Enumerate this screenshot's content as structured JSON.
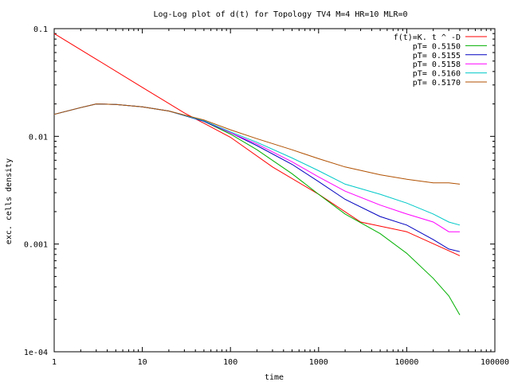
{
  "chart_data": {
    "type": "line",
    "title": "Log-Log plot of d(t) for Topology TV4 M=4 HR=10 MLR=0",
    "xlabel": "time",
    "ylabel": "exc. cells density",
    "x_scale": "log",
    "y_scale": "log",
    "xlim": [
      1,
      100000
    ],
    "ylim": [
      0.0001,
      0.1
    ],
    "x_ticks": [
      1,
      10,
      100,
      1000,
      10000,
      100000
    ],
    "x_tick_labels": [
      "1",
      "10",
      "100",
      "1000",
      "10000",
      "100000"
    ],
    "y_ticks": [
      0.0001,
      0.001,
      0.01,
      0.1
    ],
    "y_tick_labels": [
      "1e-04",
      "0.001",
      "0.01",
      "0.1"
    ],
    "grid": false,
    "legend_position": "top-right",
    "series": [
      {
        "name": "f(t)=K. t ^ -D",
        "color": "#ff0000",
        "points": [
          [
            1,
            0.09
          ],
          [
            3,
            0.052
          ],
          [
            10,
            0.0285
          ],
          [
            30,
            0.0165
          ],
          [
            100,
            0.0098
          ],
          [
            300,
            0.0052
          ],
          [
            1000,
            0.0029
          ],
          [
            3000,
            0.0016
          ],
          [
            10000,
            0.0013
          ],
          [
            40000,
            0.00078
          ]
        ]
      },
      {
        "name": "pT= 0.5150",
        "color": "#00b000",
        "points": [
          [
            1,
            0.016
          ],
          [
            2,
            0.0185
          ],
          [
            3,
            0.02
          ],
          [
            5,
            0.0198
          ],
          [
            10,
            0.0188
          ],
          [
            20,
            0.0172
          ],
          [
            50,
            0.0138
          ],
          [
            100,
            0.0105
          ],
          [
            200,
            0.0075
          ],
          [
            500,
            0.0045
          ],
          [
            1000,
            0.0029
          ],
          [
            2000,
            0.0019
          ],
          [
            5000,
            0.00125
          ],
          [
            10000,
            0.00082
          ],
          [
            20000,
            0.00048
          ],
          [
            30000,
            0.00033
          ],
          [
            40000,
            0.00022
          ]
        ]
      },
      {
        "name": "pT= 0.5155",
        "color": "#0000c0",
        "points": [
          [
            1,
            0.016
          ],
          [
            2,
            0.0185
          ],
          [
            3,
            0.02
          ],
          [
            5,
            0.0198
          ],
          [
            10,
            0.0188
          ],
          [
            20,
            0.0172
          ],
          [
            50,
            0.0138
          ],
          [
            100,
            0.0108
          ],
          [
            200,
            0.0082
          ],
          [
            500,
            0.0055
          ],
          [
            1000,
            0.0038
          ],
          [
            2000,
            0.0026
          ],
          [
            5000,
            0.0018
          ],
          [
            10000,
            0.0015
          ],
          [
            20000,
            0.0011
          ],
          [
            30000,
            0.0009
          ],
          [
            40000,
            0.00085
          ]
        ]
      },
      {
        "name": "pT= 0.5158",
        "color": "#ff00ff",
        "points": [
          [
            1,
            0.016
          ],
          [
            2,
            0.0185
          ],
          [
            3,
            0.02
          ],
          [
            5,
            0.0198
          ],
          [
            10,
            0.0188
          ],
          [
            20,
            0.0172
          ],
          [
            50,
            0.014
          ],
          [
            100,
            0.0108
          ],
          [
            200,
            0.0085
          ],
          [
            500,
            0.0058
          ],
          [
            1000,
            0.0042
          ],
          [
            2000,
            0.0031
          ],
          [
            5000,
            0.0023
          ],
          [
            10000,
            0.0019
          ],
          [
            20000,
            0.0016
          ],
          [
            30000,
            0.0013
          ],
          [
            40000,
            0.0013
          ]
        ]
      },
      {
        "name": "pT= 0.5160",
        "color": "#00c8c8",
        "points": [
          [
            1,
            0.016
          ],
          [
            2,
            0.0185
          ],
          [
            3,
            0.02
          ],
          [
            5,
            0.0198
          ],
          [
            10,
            0.0188
          ],
          [
            20,
            0.0172
          ],
          [
            50,
            0.014
          ],
          [
            100,
            0.011
          ],
          [
            200,
            0.0088
          ],
          [
            500,
            0.0063
          ],
          [
            1000,
            0.0048
          ],
          [
            2000,
            0.0036
          ],
          [
            5000,
            0.0029
          ],
          [
            10000,
            0.0024
          ],
          [
            20000,
            0.0019
          ],
          [
            30000,
            0.0016
          ],
          [
            40000,
            0.0015
          ]
        ]
      },
      {
        "name": "pT= 0.5170",
        "color": "#b05000",
        "points": [
          [
            1,
            0.016
          ],
          [
            2,
            0.0185
          ],
          [
            3,
            0.02
          ],
          [
            5,
            0.0198
          ],
          [
            10,
            0.0188
          ],
          [
            20,
            0.0172
          ],
          [
            50,
            0.0142
          ],
          [
            100,
            0.0115
          ],
          [
            200,
            0.0095
          ],
          [
            500,
            0.0075
          ],
          [
            1000,
            0.0062
          ],
          [
            2000,
            0.0052
          ],
          [
            5000,
            0.0044
          ],
          [
            10000,
            0.004
          ],
          [
            20000,
            0.0037
          ],
          [
            30000,
            0.0037
          ],
          [
            40000,
            0.0036
          ]
        ]
      }
    ]
  }
}
